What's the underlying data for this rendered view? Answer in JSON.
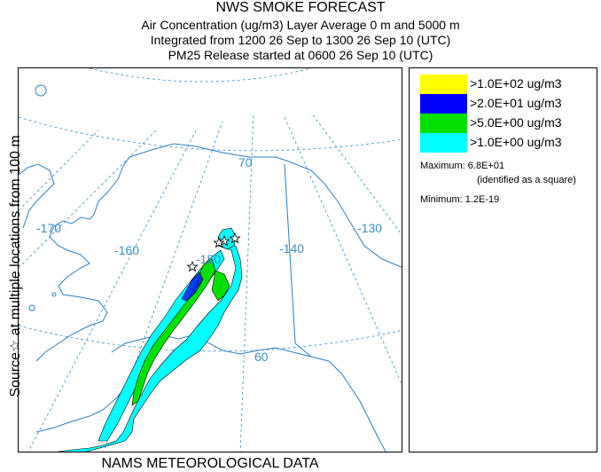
{
  "title": {
    "line1": "NWS SMOKE FORECAST",
    "line2": "Air Concentration (ug/m3) Layer Average    0 m and  5000 m",
    "line3": "Integrated from 1200 26 Sep to 1300 26 Sep 10 (UTC)",
    "line4": "PM25 Release started at 0600 26 Sep 10 (UTC)"
  },
  "side_label": "Source☆  at multiple locations  from  100 m",
  "footer": "NAMS METEOROLOGICAL DATA",
  "map": {
    "graticule_labels": {
      "lat70": "70",
      "lat60": "60",
      "lon_m170": "-170",
      "lon_m160": "-160",
      "lon_m150": "-150",
      "lon_m140": "-140",
      "lon_m130": "-130"
    },
    "colors": {
      "graticule": "#3a8fc9",
      "coast": "#2e7fc0",
      "c1": "#00ffff",
      "c5": "#00e000",
      "c20": "#0000ff",
      "c100": "#ffff00",
      "contour": "#000000"
    },
    "source_marker": "star-icon"
  },
  "legend": {
    "items": [
      {
        "label": ">1.0E+02 ug/m3",
        "color": "#ffff00"
      },
      {
        "label": ">2.0E+01 ug/m3",
        "color": "#0000ff"
      },
      {
        "label": ">5.0E+00 ug/m3",
        "color": "#00e000"
      },
      {
        "label": ">1.0E+00 ug/m3",
        "color": "#00ffff"
      }
    ],
    "maximum_label": "Maximum: 6.8E+01",
    "maximum_note": "(identified as a square)",
    "minimum_label": "Minimum: 1.2E-19"
  }
}
